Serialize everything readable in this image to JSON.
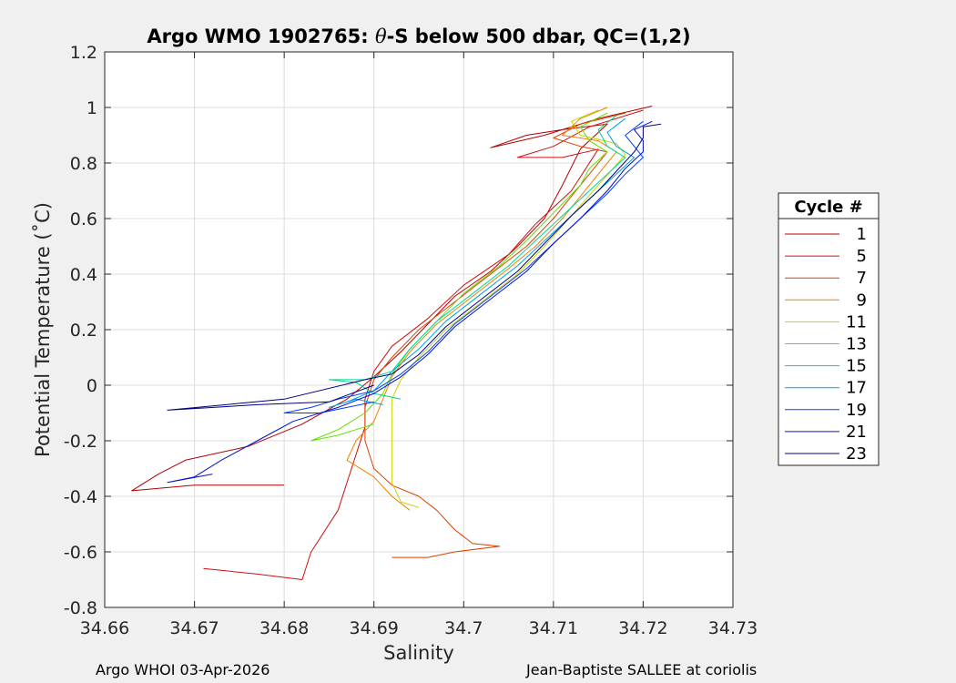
{
  "chart_data": {
    "type": "line",
    "title_parts": [
      "Argo WMO 1902765: ",
      "θ",
      "-S below 500 dbar,  QC=(1,2)"
    ],
    "xlabel": "Salinity",
    "ylabel": "Potential Temperature (˚C)",
    "xlim": [
      34.66,
      34.73
    ],
    "ylim": [
      -0.8,
      1.2
    ],
    "xticks": [
      "34.66",
      "34.67",
      "34.68",
      "34.69",
      "34.7",
      "34.71",
      "34.72",
      "34.73"
    ],
    "yticks": [
      "1.2",
      "1",
      "0.8",
      "0.6",
      "0.4",
      "0.2",
      "0",
      "-0.2",
      "-0.4",
      "-0.6",
      "-0.8"
    ],
    "grid": true,
    "legend_title": "Cycle #",
    "legend_position": "right",
    "series": [
      {
        "name": "1",
        "color": "#b30000",
        "points": [
          [
            34.721,
            1.005
          ],
          [
            34.715,
            0.96
          ],
          [
            34.709,
            0.9
          ],
          [
            34.705,
            0.87
          ],
          [
            34.703,
            0.855
          ],
          [
            34.707,
            0.9
          ],
          [
            34.711,
            0.92
          ],
          [
            34.716,
            0.94
          ],
          [
            34.713,
            0.85
          ],
          [
            34.711,
            0.72
          ],
          [
            34.709,
            0.6
          ],
          [
            34.706,
            0.5
          ],
          [
            34.703,
            0.41
          ],
          [
            34.699,
            0.32
          ],
          [
            34.696,
            0.22
          ],
          [
            34.693,
            0.12
          ],
          [
            34.69,
            0.03
          ],
          [
            34.687,
            -0.05
          ],
          [
            34.682,
            -0.14
          ],
          [
            34.676,
            -0.22
          ],
          [
            34.669,
            -0.27
          ],
          [
            34.666,
            -0.32
          ],
          [
            34.663,
            -0.38
          ],
          [
            34.67,
            -0.36
          ],
          [
            34.68,
            -0.36
          ]
        ]
      },
      {
        "name": "5",
        "color": "#d01010",
        "points": [
          [
            34.72,
            0.99
          ],
          [
            34.714,
            0.93
          ],
          [
            34.71,
            0.86
          ],
          [
            34.706,
            0.82
          ],
          [
            34.711,
            0.82
          ],
          [
            34.715,
            0.85
          ],
          [
            34.712,
            0.7
          ],
          [
            34.708,
            0.58
          ],
          [
            34.705,
            0.47
          ],
          [
            34.7,
            0.36
          ],
          [
            34.696,
            0.24
          ],
          [
            34.692,
            0.14
          ],
          [
            34.69,
            0.05
          ],
          [
            34.689,
            -0.05
          ],
          [
            34.689,
            -0.15
          ],
          [
            34.688,
            -0.25
          ],
          [
            34.687,
            -0.35
          ],
          [
            34.686,
            -0.45
          ],
          [
            34.684,
            -0.55
          ],
          [
            34.683,
            -0.6
          ],
          [
            34.682,
            -0.7
          ],
          [
            34.677,
            -0.68
          ],
          [
            34.671,
            -0.66
          ]
        ]
      },
      {
        "name": "7",
        "color": "#e04000",
        "points": [
          [
            34.718,
            0.98
          ],
          [
            34.713,
            0.94
          ],
          [
            34.71,
            0.89
          ],
          [
            34.713,
            0.86
          ],
          [
            34.716,
            0.84
          ],
          [
            34.713,
            0.72
          ],
          [
            34.71,
            0.6
          ],
          [
            34.707,
            0.5
          ],
          [
            34.703,
            0.4
          ],
          [
            34.699,
            0.3
          ],
          [
            34.695,
            0.2
          ],
          [
            34.692,
            0.1
          ],
          [
            34.69,
            0.02
          ],
          [
            34.689,
            -0.08
          ],
          [
            34.689,
            -0.2
          ],
          [
            34.69,
            -0.3
          ],
          [
            34.692,
            -0.36
          ],
          [
            34.695,
            -0.4
          ],
          [
            34.697,
            -0.45
          ],
          [
            34.699,
            -0.52
          ],
          [
            34.701,
            -0.57
          ],
          [
            34.704,
            -0.58
          ],
          [
            34.699,
            -0.6
          ],
          [
            34.696,
            -0.62
          ],
          [
            34.692,
            -0.62
          ]
        ]
      },
      {
        "name": "9",
        "color": "#f08000",
        "points": [
          [
            34.716,
            1.0
          ],
          [
            34.713,
            0.96
          ],
          [
            34.711,
            0.9
          ],
          [
            34.715,
            0.88
          ],
          [
            34.717,
            0.84
          ],
          [
            34.714,
            0.72
          ],
          [
            34.711,
            0.6
          ],
          [
            34.708,
            0.5
          ],
          [
            34.705,
            0.42
          ],
          [
            34.701,
            0.32
          ],
          [
            34.697,
            0.22
          ],
          [
            34.694,
            0.12
          ],
          [
            34.692,
            0.03
          ],
          [
            34.691,
            -0.05
          ],
          [
            34.69,
            -0.13
          ],
          [
            34.688,
            -0.2
          ],
          [
            34.687,
            -0.27
          ],
          [
            34.69,
            -0.33
          ],
          [
            34.692,
            -0.4
          ],
          [
            34.694,
            -0.45
          ]
        ]
      },
      {
        "name": "11",
        "color": "#c8d400",
        "points": [
          [
            34.715,
            0.99
          ],
          [
            34.712,
            0.95
          ],
          [
            34.713,
            0.9
          ],
          [
            34.717,
            0.87
          ],
          [
            34.718,
            0.83
          ],
          [
            34.715,
            0.72
          ],
          [
            34.712,
            0.61
          ],
          [
            34.709,
            0.5
          ],
          [
            34.706,
            0.4
          ],
          [
            34.702,
            0.3
          ],
          [
            34.698,
            0.2
          ],
          [
            34.695,
            0.1
          ],
          [
            34.693,
            0.02
          ],
          [
            34.692,
            -0.05
          ],
          [
            34.692,
            -0.15
          ],
          [
            34.692,
            -0.25
          ],
          [
            34.692,
            -0.35
          ],
          [
            34.693,
            -0.42
          ],
          [
            34.695,
            -0.44
          ]
        ]
      },
      {
        "name": "13",
        "color": "#60e000",
        "points": [
          [
            34.716,
            0.98
          ],
          [
            34.713,
            0.93
          ],
          [
            34.714,
            0.88
          ],
          [
            34.716,
            0.84
          ],
          [
            34.714,
            0.78
          ],
          [
            34.713,
            0.72
          ],
          [
            34.71,
            0.62
          ],
          [
            34.707,
            0.52
          ],
          [
            34.704,
            0.43
          ],
          [
            34.7,
            0.33
          ],
          [
            34.697,
            0.23
          ],
          [
            34.694,
            0.13
          ],
          [
            34.692,
            0.04
          ],
          [
            34.691,
            -0.03
          ],
          [
            34.689,
            -0.1
          ],
          [
            34.686,
            -0.16
          ],
          [
            34.683,
            -0.2
          ],
          [
            34.686,
            -0.18
          ],
          [
            34.69,
            -0.14
          ]
        ]
      },
      {
        "name": "15",
        "color": "#00d890",
        "points": [
          [
            34.717,
            0.97
          ],
          [
            34.715,
            0.92
          ],
          [
            34.716,
            0.86
          ],
          [
            34.718,
            0.82
          ],
          [
            34.716,
            0.76
          ],
          [
            34.714,
            0.7
          ],
          [
            34.711,
            0.61
          ],
          [
            34.708,
            0.52
          ],
          [
            34.705,
            0.43
          ],
          [
            34.701,
            0.33
          ],
          [
            34.697,
            0.23
          ],
          [
            34.694,
            0.13
          ],
          [
            34.692,
            0.05
          ],
          [
            34.689,
            0.02
          ],
          [
            34.685,
            0.02
          ],
          [
            34.688,
            0.01
          ],
          [
            34.69,
            -0.03
          ],
          [
            34.693,
            -0.05
          ]
        ]
      },
      {
        "name": "17",
        "color": "#00a0e0",
        "points": [
          [
            34.718,
            0.96
          ],
          [
            34.716,
            0.91
          ],
          [
            34.717,
            0.86
          ],
          [
            34.719,
            0.82
          ],
          [
            34.717,
            0.76
          ],
          [
            34.715,
            0.7
          ],
          [
            34.712,
            0.61
          ],
          [
            34.709,
            0.52
          ],
          [
            34.706,
            0.43
          ],
          [
            34.702,
            0.33
          ],
          [
            34.698,
            0.23
          ],
          [
            34.695,
            0.13
          ],
          [
            34.692,
            0.05
          ],
          [
            34.69,
            -0.02
          ],
          [
            34.687,
            -0.06
          ],
          [
            34.685,
            -0.08
          ],
          [
            34.688,
            -0.05
          ],
          [
            34.691,
            -0.07
          ]
        ]
      },
      {
        "name": "19",
        "color": "#0040ff",
        "points": [
          [
            34.72,
            0.95
          ],
          [
            34.718,
            0.9
          ],
          [
            34.719,
            0.86
          ],
          [
            34.72,
            0.82
          ],
          [
            34.718,
            0.76
          ],
          [
            34.716,
            0.69
          ],
          [
            34.713,
            0.6
          ],
          [
            34.71,
            0.51
          ],
          [
            34.707,
            0.42
          ],
          [
            34.703,
            0.32
          ],
          [
            34.699,
            0.22
          ],
          [
            34.696,
            0.12
          ],
          [
            34.693,
            0.04
          ],
          [
            34.69,
            -0.02
          ],
          [
            34.686,
            -0.05
          ],
          [
            34.683,
            -0.08
          ],
          [
            34.68,
            -0.1
          ],
          [
            34.684,
            -0.1
          ],
          [
            34.687,
            -0.08
          ],
          [
            34.69,
            -0.06
          ]
        ]
      },
      {
        "name": "21",
        "color": "#0010d0",
        "points": [
          [
            34.721,
            0.95
          ],
          [
            34.719,
            0.92
          ],
          [
            34.72,
            0.88
          ],
          [
            34.72,
            0.84
          ],
          [
            34.718,
            0.78
          ],
          [
            34.716,
            0.7
          ],
          [
            34.713,
            0.6
          ],
          [
            34.71,
            0.51
          ],
          [
            34.707,
            0.41
          ],
          [
            34.703,
            0.31
          ],
          [
            34.699,
            0.21
          ],
          [
            34.696,
            0.11
          ],
          [
            34.693,
            0.03
          ],
          [
            34.69,
            -0.03
          ],
          [
            34.686,
            -0.08
          ],
          [
            34.681,
            -0.13
          ],
          [
            34.677,
            -0.2
          ],
          [
            34.673,
            -0.27
          ],
          [
            34.67,
            -0.33
          ],
          [
            34.667,
            -0.35
          ],
          [
            34.672,
            -0.32
          ]
        ]
      },
      {
        "name": "23",
        "color": "#000080",
        "points": [
          [
            34.722,
            0.94
          ],
          [
            34.72,
            0.93
          ],
          [
            34.72,
            0.89
          ],
          [
            34.719,
            0.84
          ],
          [
            34.717,
            0.77
          ],
          [
            34.715,
            0.7
          ],
          [
            34.712,
            0.61
          ],
          [
            34.709,
            0.51
          ],
          [
            34.706,
            0.41
          ],
          [
            34.702,
            0.31
          ],
          [
            34.698,
            0.21
          ],
          [
            34.695,
            0.11
          ],
          [
            34.692,
            0.04
          ],
          [
            34.689,
            0.02
          ],
          [
            34.68,
            -0.05
          ],
          [
            34.667,
            -0.09
          ],
          [
            34.677,
            -0.07
          ],
          [
            34.685,
            -0.06
          ],
          [
            34.69,
            0.0
          ]
        ]
      }
    ]
  },
  "footer": {
    "left": "Argo WHOI 03-Apr-2026",
    "right": "Jean-Baptiste SALLEE at coriolis"
  }
}
